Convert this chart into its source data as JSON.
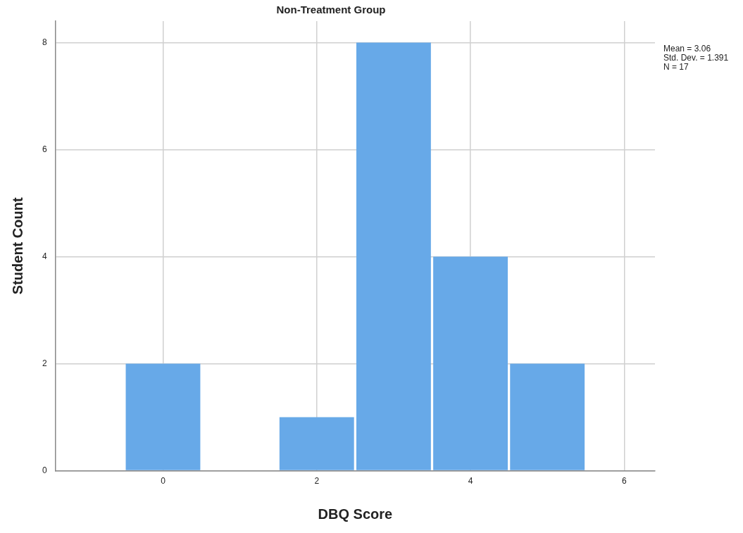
{
  "chart_data": {
    "type": "histogram",
    "title": "Non-Treatment Group",
    "xlabel": "DBQ Score",
    "ylabel": "Student Count",
    "bins": [
      -0.5,
      0.5,
      1.5,
      2.5,
      3.5,
      4.5,
      5.5
    ],
    "values": [
      2,
      0,
      1,
      8,
      4,
      2
    ],
    "color": "#67a9e8",
    "xlim": [
      -1.4,
      6.4
    ],
    "ylim": [
      0,
      8.4
    ],
    "xticks": [
      0,
      2,
      4,
      6
    ],
    "yticks": [
      0,
      2,
      4,
      6,
      8
    ],
    "grid": true,
    "annotations": [
      "Mean = 3.06",
      "Std. Dev. = 1.391",
      "N = 17"
    ]
  }
}
